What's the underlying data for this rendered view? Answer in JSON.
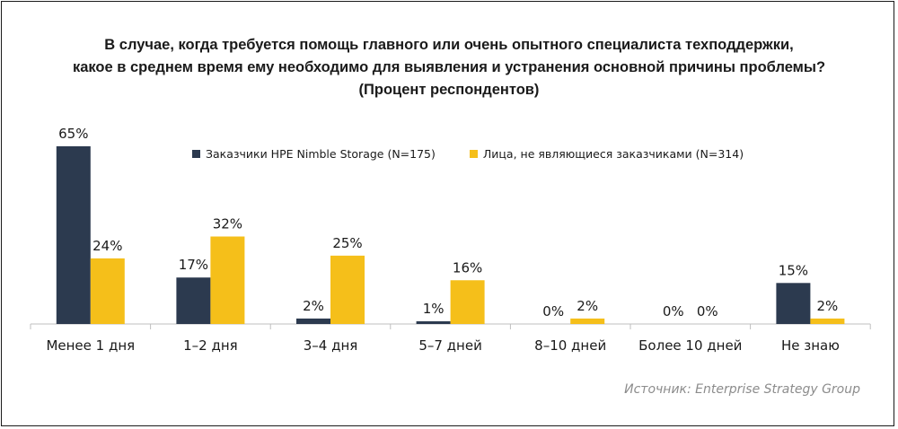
{
  "chart_data": {
    "type": "bar",
    "title_lines": [
      "В случае, когда требуется помощь главного или очень опытного специалиста техподдержки,",
      "какое в среднем время ему необходимо для выявления и устранения основной причины проблемы?",
      "(Процент респондентов)"
    ],
    "categories": [
      "Менее 1 дня",
      "1–2 дня",
      "3–4 дня",
      "5–7 дней",
      "8–10 дней",
      "Более 10 дней",
      "Не знаю"
    ],
    "series": [
      {
        "name": "Заказчики HPE Nimble Storage (N=175)",
        "color": "#2c3a4f",
        "values": [
          65,
          17,
          2,
          1,
          0,
          0,
          15
        ],
        "labels": [
          "65%",
          "17%",
          "2%",
          "1%",
          "0%",
          "0%",
          "15%"
        ]
      },
      {
        "name": "Лица, не являющиеся заказчиками (N=314)",
        "color": "#f5bf1a",
        "values": [
          24,
          32,
          25,
          16,
          2,
          0,
          2
        ],
        "labels": [
          "24%",
          "32%",
          "25%",
          "16%",
          "2%",
          "0%",
          "2%"
        ]
      }
    ],
    "ylim": [
      0,
      65
    ],
    "grid": false,
    "legend_position": "top-center",
    "source": "Источник: Enterprise Strategy Group"
  }
}
